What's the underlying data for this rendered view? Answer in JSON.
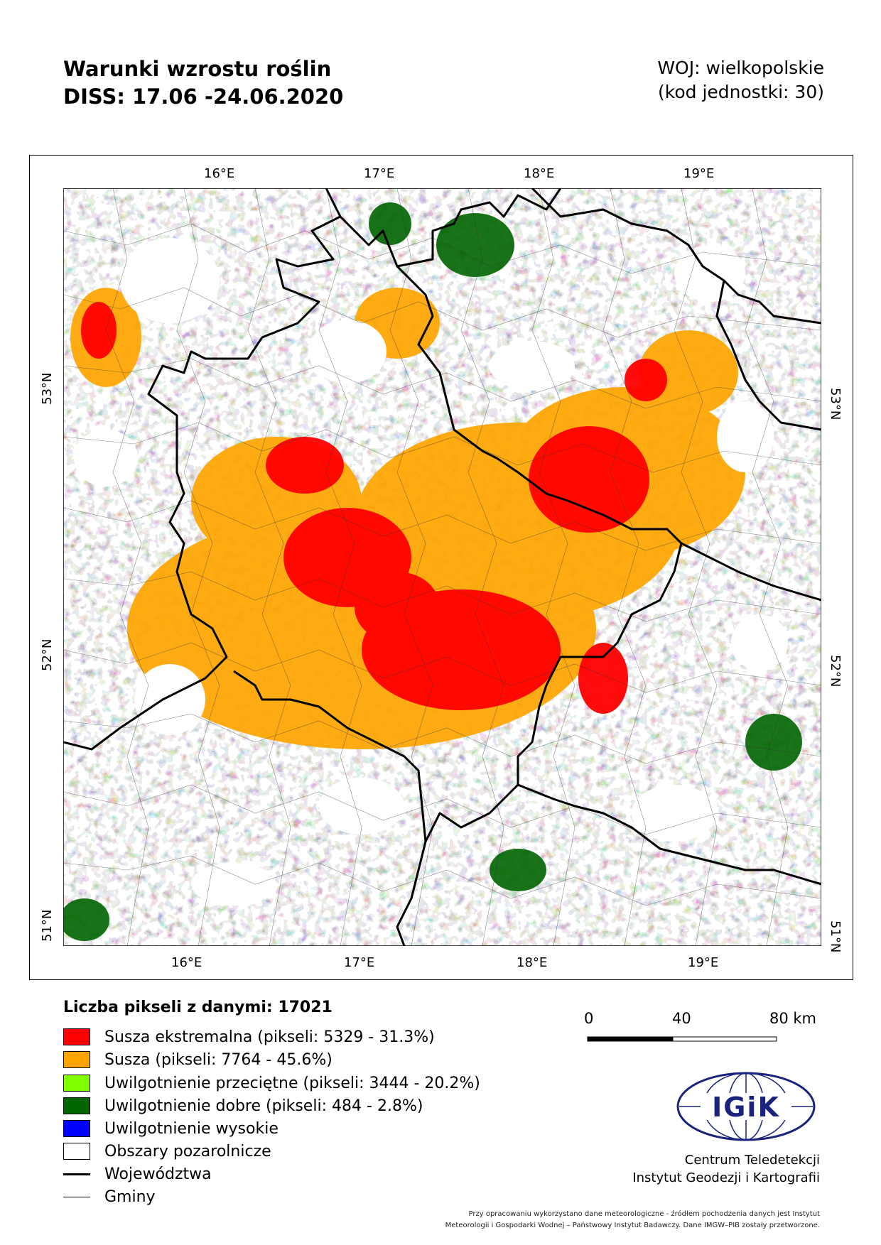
{
  "header": {
    "title_line1": "Warunki wzrostu roślin",
    "title_line2": "DISS: 17.06 -24.06.2020",
    "region_line1": "WOJ: wielkopolskie",
    "region_line2": "(kod jednostki: 30)"
  },
  "map": {
    "top_ticks": [
      "16°E",
      "17°E",
      "18°E",
      "19°E"
    ],
    "bottom_ticks": [
      "16°E",
      "17°E",
      "18°E",
      "19°E"
    ],
    "left_ticks": [
      "53°N",
      "52°N",
      "51°N"
    ],
    "right_ticks": [
      "53°N",
      "52°N",
      "51°N"
    ],
    "class_shares": {
      "Susza ekstremalna": 31.3,
      "Susza": 45.6,
      "Uwilgotnienie przeciętne": 20.2,
      "Uwilgotnienie dobre": 2.8,
      "Uwilgotnienie wysokie": 0
    }
  },
  "legend": {
    "title": "Liczba pikseli z danymi: 17021",
    "items": [
      {
        "label": "Susza ekstremalna (pikseli: 5329 - 31.3%)",
        "color": "#ff0000"
      },
      {
        "label": "Susza (pikseli: 7764 - 45.6%)",
        "color": "#ffa500"
      },
      {
        "label": "Uwilgotnienie przeciętne (pikseli: 3444 - 20.2%)",
        "color": "#7fff00"
      },
      {
        "label": "Uwilgotnienie dobre (pikseli: 484 - 2.8%)",
        "color": "#006400"
      },
      {
        "label": "Uwilgotnienie wysokie",
        "color": "#0000ff"
      },
      {
        "label": "Obszary pozarolnicze",
        "color": "#ffffff"
      }
    ],
    "line_items": [
      {
        "label": "Województwa"
      },
      {
        "label": "Gminy"
      }
    ]
  },
  "scale_bar": {
    "labels": [
      "0",
      "40",
      "80 km"
    ]
  },
  "logo": {
    "text": "IGiK"
  },
  "organization": {
    "line1": "Centrum Teledetekcji",
    "line2": "Instytut Geodezji i Kartografii"
  },
  "footer": {
    "line1": "Przy opracowaniu wykorzystano dane meteorologiczne - źródłem pochodzenia danych jest Instytut",
    "line2": "Meteorologii i Gospodarki Wodnej – Państwowy Instytut Badawczy. Dane IMGW–PIB zostały przetworzone."
  },
  "colors": {
    "extreme_drought": "#ff0000",
    "drought": "#ffa500",
    "average": "#7fff00",
    "good": "#006400",
    "high": "#0000ff",
    "non_agricultural": "#ffffff",
    "logo_blue": "#1a237e"
  }
}
